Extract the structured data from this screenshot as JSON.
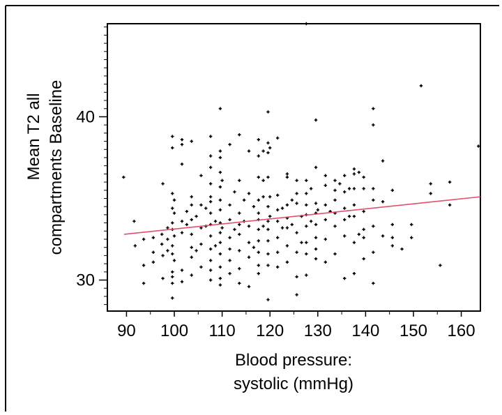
{
  "chart_data": {
    "type": "scatter",
    "title": "",
    "xlabel_lines": [
      "Blood pressure:",
      "systolic (mmHg)"
    ],
    "ylabel_lines": [
      "Mean T2 all",
      "compartments Baseline"
    ],
    "xlim": [
      86,
      164
    ],
    "ylim": [
      28.1,
      45.7
    ],
    "x_ticks": [
      90,
      100,
      110,
      120,
      130,
      140,
      150,
      160
    ],
    "y_ticks": [
      30,
      40
    ],
    "y_minor_step": 0.5,
    "grid": false,
    "legend": "none",
    "colors": {
      "points": "#000000",
      "fit_line": "#e05070",
      "axes": "#000000",
      "frame": "#000000"
    },
    "fit_line": {
      "x": [
        89.5,
        164
      ],
      "y": [
        32.8,
        35.1
      ]
    },
    "points": [
      [
        89.4,
        36.3
      ],
      [
        91.6,
        33.6
      ],
      [
        91.8,
        32.1
      ],
      [
        93.6,
        32.5
      ],
      [
        93.6,
        30.9
      ],
      [
        93.6,
        29.8
      ],
      [
        95.6,
        31.7
      ],
      [
        95.6,
        32.6
      ],
      [
        95.6,
        31.1
      ],
      [
        97.4,
        32.8
      ],
      [
        97.4,
        32.2
      ],
      [
        97.6,
        31.5
      ],
      [
        97.6,
        30.1
      ],
      [
        97.6,
        35.9
      ],
      [
        98.6,
        31.8
      ],
      [
        98.6,
        33.2
      ],
      [
        98.6,
        32.5
      ],
      [
        99.6,
        38.8
      ],
      [
        99.6,
        38.1
      ],
      [
        99.6,
        35.3
      ],
      [
        99.6,
        34.4
      ],
      [
        99.6,
        33.5
      ],
      [
        99.6,
        33.1
      ],
      [
        99.6,
        32.1
      ],
      [
        99.6,
        31.6
      ],
      [
        99.6,
        30.5
      ],
      [
        99.6,
        30.2
      ],
      [
        99.6,
        29.8
      ],
      [
        99.6,
        28.9
      ],
      [
        100.0,
        34.9
      ],
      [
        100.0,
        34.1
      ],
      [
        100.0,
        32.7
      ],
      [
        100.0,
        31.2
      ],
      [
        101.6,
        38.6
      ],
      [
        101.6,
        38.3
      ],
      [
        101.6,
        37.1
      ],
      [
        101.6,
        33.6
      ],
      [
        101.6,
        32.9
      ],
      [
        101.6,
        30.6
      ],
      [
        101.6,
        29.9
      ],
      [
        102.6,
        34.2
      ],
      [
        102.6,
        33.4
      ],
      [
        103.6,
        38.5
      ],
      [
        103.6,
        35.1
      ],
      [
        103.6,
        34.6
      ],
      [
        103.6,
        33.7
      ],
      [
        103.6,
        32.8
      ],
      [
        103.6,
        32.0
      ],
      [
        103.6,
        31.4
      ],
      [
        103.6,
        30.3
      ],
      [
        104.6,
        33.9
      ],
      [
        104.6,
        31.8
      ],
      [
        105.6,
        36.4
      ],
      [
        105.6,
        34.6
      ],
      [
        105.6,
        33.2
      ],
      [
        105.6,
        32.2
      ],
      [
        105.6,
        30.8
      ],
      [
        106.6,
        34.4
      ],
      [
        106.6,
        33.3
      ],
      [
        107.6,
        38.8
      ],
      [
        107.6,
        37.6
      ],
      [
        107.6,
        36.9
      ],
      [
        107.6,
        35.9
      ],
      [
        107.6,
        35.1
      ],
      [
        107.6,
        34.8
      ],
      [
        107.6,
        34.1
      ],
      [
        107.6,
        33.4
      ],
      [
        107.6,
        32.7
      ],
      [
        107.6,
        31.9
      ],
      [
        107.6,
        31.2
      ],
      [
        107.6,
        30.6
      ],
      [
        107.6,
        30.0
      ],
      [
        108.6,
        33.6
      ],
      [
        108.6,
        32.1
      ],
      [
        109.6,
        40.5
      ],
      [
        109.6,
        37.9
      ],
      [
        109.6,
        37.5
      ],
      [
        109.6,
        36.6
      ],
      [
        109.6,
        35.7
      ],
      [
        109.6,
        34.9
      ],
      [
        109.6,
        34.3
      ],
      [
        109.6,
        33.5
      ],
      [
        109.6,
        32.9
      ],
      [
        109.6,
        32.3
      ],
      [
        109.6,
        31.6
      ],
      [
        109.6,
        30.8
      ],
      [
        109.6,
        30.1
      ],
      [
        109.6,
        29.7
      ],
      [
        110.0,
        36.1
      ],
      [
        110.0,
        33.2
      ],
      [
        111.6,
        38.3
      ],
      [
        111.6,
        34.6
      ],
      [
        111.6,
        33.7
      ],
      [
        111.6,
        32.6
      ],
      [
        111.6,
        31.9
      ],
      [
        111.6,
        31.2
      ],
      [
        111.6,
        30.4
      ],
      [
        112.6,
        35.4
      ],
      [
        112.6,
        33.1
      ],
      [
        113.6,
        38.9
      ],
      [
        113.6,
        36.1
      ],
      [
        113.6,
        34.1
      ],
      [
        113.6,
        33.4
      ],
      [
        113.6,
        32.8
      ],
      [
        113.6,
        31.8
      ],
      [
        113.6,
        30.7
      ],
      [
        113.6,
        29.8
      ],
      [
        114.6,
        34.9
      ],
      [
        114.6,
        33.6
      ],
      [
        115.6,
        37.9
      ],
      [
        115.6,
        35.3
      ],
      [
        115.6,
        33.3
      ],
      [
        115.6,
        32.3
      ],
      [
        115.6,
        31.4
      ],
      [
        115.6,
        29.6
      ],
      [
        116.6,
        34.5
      ],
      [
        116.6,
        32.0
      ],
      [
        117.6,
        38.6
      ],
      [
        117.6,
        37.6
      ],
      [
        117.6,
        36.3
      ],
      [
        117.6,
        34.9
      ],
      [
        117.6,
        34.1
      ],
      [
        117.6,
        33.7
      ],
      [
        117.6,
        33.1
      ],
      [
        117.6,
        32.4
      ],
      [
        117.6,
        31.7
      ],
      [
        117.6,
        30.9
      ],
      [
        117.6,
        30.4
      ],
      [
        118.6,
        37.9
      ],
      [
        118.6,
        36.1
      ],
      [
        118.6,
        35.1
      ],
      [
        118.6,
        33.3
      ],
      [
        119.6,
        40.3
      ],
      [
        119.6,
        38.4
      ],
      [
        119.6,
        37.8
      ],
      [
        119.6,
        36.3
      ],
      [
        119.6,
        34.5
      ],
      [
        119.6,
        33.6
      ],
      [
        119.6,
        33.1
      ],
      [
        119.6,
        32.4
      ],
      [
        119.6,
        31.6
      ],
      [
        119.6,
        30.9
      ],
      [
        119.6,
        28.8
      ],
      [
        120.0,
        38.1
      ],
      [
        120.0,
        35.1
      ],
      [
        120.0,
        33.9
      ],
      [
        121.6,
        38.7
      ],
      [
        121.6,
        35.2
      ],
      [
        121.6,
        34.3
      ],
      [
        121.6,
        33.6
      ],
      [
        121.6,
        32.6
      ],
      [
        121.6,
        31.7
      ],
      [
        121.6,
        30.8
      ],
      [
        122.6,
        34.4
      ],
      [
        122.6,
        33.2
      ],
      [
        123.6,
        36.5
      ],
      [
        123.6,
        36.3
      ],
      [
        123.6,
        34.6
      ],
      [
        123.6,
        33.8
      ],
      [
        123.6,
        33.2
      ],
      [
        123.6,
        32.1
      ],
      [
        123.6,
        31.1
      ],
      [
        124.6,
        34.9
      ],
      [
        124.6,
        33.4
      ],
      [
        125.6,
        36.1
      ],
      [
        125.6,
        35.3
      ],
      [
        125.6,
        34.7
      ],
      [
        125.6,
        32.9
      ],
      [
        125.6,
        31.7
      ],
      [
        125.6,
        30.2
      ],
      [
        125.6,
        29.1
      ],
      [
        126.6,
        33.9
      ],
      [
        126.6,
        32.3
      ],
      [
        127.6,
        45.7
      ],
      [
        127.6,
        36.1
      ],
      [
        127.6,
        35.3
      ],
      [
        127.6,
        34.6
      ],
      [
        127.6,
        34.0
      ],
      [
        127.6,
        33.3
      ],
      [
        127.6,
        32.3
      ],
      [
        127.6,
        31.6
      ],
      [
        127.6,
        30.3
      ],
      [
        128.6,
        35.6
      ],
      [
        128.6,
        33.6
      ],
      [
        129.6,
        39.8
      ],
      [
        129.6,
        36.9
      ],
      [
        129.6,
        34.7
      ],
      [
        129.6,
        34.1
      ],
      [
        129.6,
        33.4
      ],
      [
        129.6,
        32.6
      ],
      [
        129.6,
        31.9
      ],
      [
        129.6,
        31.3
      ],
      [
        130.0,
        34.3
      ],
      [
        131.6,
        36.4
      ],
      [
        131.6,
        35.8
      ],
      [
        131.6,
        34.6
      ],
      [
        131.6,
        33.7
      ],
      [
        131.6,
        32.5
      ],
      [
        131.6,
        31.1
      ],
      [
        132.6,
        34.2
      ],
      [
        133.6,
        36.1
      ],
      [
        133.6,
        35.5
      ],
      [
        133.6,
        34.9
      ],
      [
        133.6,
        34.1
      ],
      [
        133.6,
        33.3
      ],
      [
        133.6,
        31.6
      ],
      [
        134.6,
        35.9
      ],
      [
        135.6,
        36.4
      ],
      [
        135.6,
        35.4
      ],
      [
        135.6,
        34.4
      ],
      [
        135.6,
        33.7
      ],
      [
        135.6,
        32.7
      ],
      [
        135.6,
        30.1
      ],
      [
        136.6,
        35.6
      ],
      [
        136.6,
        33.9
      ],
      [
        137.6,
        36.8
      ],
      [
        137.6,
        36.5
      ],
      [
        137.6,
        35.6
      ],
      [
        137.6,
        34.6
      ],
      [
        137.6,
        33.9
      ],
      [
        137.6,
        32.3
      ],
      [
        137.6,
        30.4
      ],
      [
        138.6,
        36.6
      ],
      [
        138.6,
        32.8
      ],
      [
        139.6,
        36.3
      ],
      [
        139.6,
        35.6
      ],
      [
        139.6,
        34.2
      ],
      [
        139.6,
        33.1
      ],
      [
        139.6,
        32.6
      ],
      [
        139.6,
        31.3
      ],
      [
        141.6,
        40.5
      ],
      [
        141.6,
        39.5
      ],
      [
        141.6,
        35.6
      ],
      [
        141.6,
        34.9
      ],
      [
        141.6,
        33.3
      ],
      [
        141.6,
        31.7
      ],
      [
        141.6,
        29.8
      ],
      [
        143.6,
        37.3
      ],
      [
        143.6,
        34.8
      ],
      [
        143.6,
        32.7
      ],
      [
        145.6,
        35.5
      ],
      [
        145.6,
        33.4
      ],
      [
        145.6,
        32.6
      ],
      [
        145.6,
        32.1
      ],
      [
        147.6,
        31.9
      ],
      [
        149.6,
        33.4
      ],
      [
        149.6,
        32.6
      ],
      [
        151.6,
        41.9
      ],
      [
        153.6,
        35.9
      ],
      [
        153.6,
        35.3
      ],
      [
        155.6,
        30.9
      ],
      [
        157.6,
        36.0
      ],
      [
        157.6,
        34.6
      ],
      [
        163.6,
        38.2
      ]
    ]
  }
}
